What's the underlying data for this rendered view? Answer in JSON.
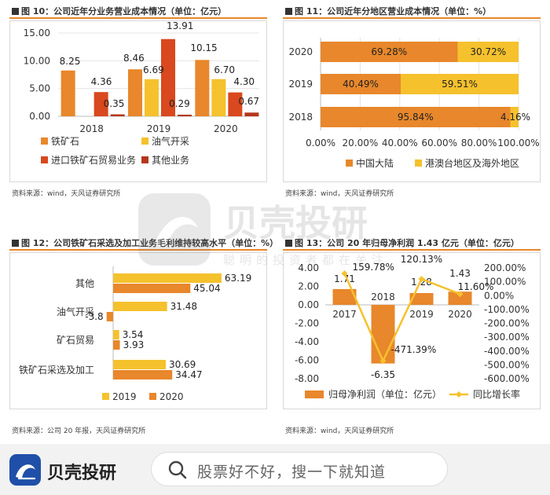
{
  "panels": {
    "p10": {
      "title": "图 10：公司近年分业务营业成本情况（单位：亿元）",
      "source": "资料来源：wind，天风证券研究所"
    },
    "p11": {
      "title": "图 11：公司近年分地区营业成本情况（单位：%）",
      "source": "资料来源：wind，天风证券研究所"
    },
    "p12": {
      "title": "图 12：公司铁矿石采选及加工业务毛利维持较高水平（单位：%）",
      "source": "资料来源：公司 20 年报，天风证券研究所"
    },
    "p13": {
      "title": "图 13：公司 20 年归母净利润 1.43 亿元（单位：亿元）",
      "source": "资料来源：wind，天风证券研究所"
    }
  },
  "colors": {
    "orange": "#E8872B",
    "yellow": "#F5C12D",
    "red": "#D9481E",
    "darkred": "#B5371C",
    "accent_rule": "#E8872B"
  },
  "chart_data": [
    {
      "id": "chart10",
      "type": "bar",
      "categories": [
        "2018",
        "2019",
        "2020"
      ],
      "series": [
        {
          "name": "铁矿石",
          "values": [
            8.25,
            8.46,
            10.15
          ]
        },
        {
          "name": "油气开采",
          "values": [
            null,
            6.69,
            6.7
          ]
        },
        {
          "name": "进口铁矿石贸易业务",
          "values": [
            4.36,
            13.91,
            4.3
          ]
        },
        {
          "name": "其他业务",
          "values": [
            0.35,
            0.29,
            0.67
          ]
        }
      ],
      "data_labels": [
        [
          "8.25",
          "",
          "4.36",
          "0.35"
        ],
        [
          "8.46",
          "6.69",
          "13.91",
          "0.29"
        ],
        [
          "10.15",
          "6.70",
          "4.30",
          "0.67"
        ]
      ],
      "yticks": [
        "0.00",
        "5.00",
        "10.00",
        "15.00"
      ],
      "ylim": [
        0,
        15
      ],
      "grid": true,
      "legend": "bottom"
    },
    {
      "id": "chart11",
      "type": "bar",
      "orientation": "horizontal-stacked",
      "categories": [
        "2020",
        "2019",
        "2018"
      ],
      "series": [
        {
          "name": "中国大陆",
          "values": [
            69.28,
            40.49,
            95.84
          ],
          "labels": [
            "69.28%",
            "40.49%",
            "95.84%"
          ]
        },
        {
          "name": "港澳台地区及海外地区",
          "values": [
            30.72,
            59.51,
            4.16
          ],
          "labels": [
            "30.72%",
            "59.51%",
            "4.16%"
          ]
        }
      ],
      "xticks": [
        "0.00%",
        "20.00%",
        "40.00%",
        "60.00%",
        "80.00%",
        "100.00%"
      ],
      "xlim": [
        0,
        100
      ],
      "grid": true,
      "legend": "bottom"
    },
    {
      "id": "chart12",
      "type": "bar",
      "orientation": "horizontal",
      "categories": [
        "其他",
        "油气开采",
        "矿石贸易",
        "铁矿石采选及加工"
      ],
      "series": [
        {
          "name": "2019",
          "values": [
            63.19,
            31.48,
            3.54,
            30.69
          ],
          "labels": [
            "63.19",
            "31.48",
            "3.54",
            "30.69"
          ]
        },
        {
          "name": "2020",
          "values": [
            45.04,
            -3.8,
            3.93,
            34.47
          ],
          "labels": [
            "45.04",
            "-3.8",
            "3.93",
            "34.47"
          ]
        }
      ],
      "xlim": [
        -10,
        70
      ],
      "legend": "bottom"
    },
    {
      "id": "chart13",
      "type": "bar",
      "categories": [
        "2017",
        "2018",
        "2019",
        "2020"
      ],
      "series": [
        {
          "name": "归母净利润（单位：亿元）",
          "type": "bar",
          "axis": "left",
          "values": [
            1.71,
            -6.35,
            1.28,
            1.43
          ],
          "labels": [
            "1.71",
            "-6.35",
            "1.28",
            "1.43"
          ]
        },
        {
          "name": "同比增长率",
          "type": "line",
          "axis": "right",
          "values": [
            159.78,
            -471.39,
            120.13,
            11.6
          ],
          "labels": [
            "159.78%",
            "-471.39%",
            "120.13%",
            "11.60%"
          ]
        }
      ],
      "yticks_left": [
        "-8.00",
        "-6.00",
        "-4.00",
        "-2.00",
        "0.00",
        "2.00",
        "4.00"
      ],
      "ylim_left": [
        -8,
        4
      ],
      "yticks_right": [
        "-600.00%",
        "-500.00%",
        "-400.00%",
        "-300.00%",
        "-200.00%",
        "-100.00%",
        "0.00%",
        "100.00%",
        "200.00%"
      ],
      "ylim_right": [
        -600,
        200
      ],
      "legend": "bottom"
    }
  ],
  "watermark": {
    "brand": "贝壳投研",
    "slogan": "聪明的投资者都在关注"
  },
  "footer": {
    "brand": "贝壳投研",
    "search_placeholder": "股票好不好，搜一下就知道"
  }
}
